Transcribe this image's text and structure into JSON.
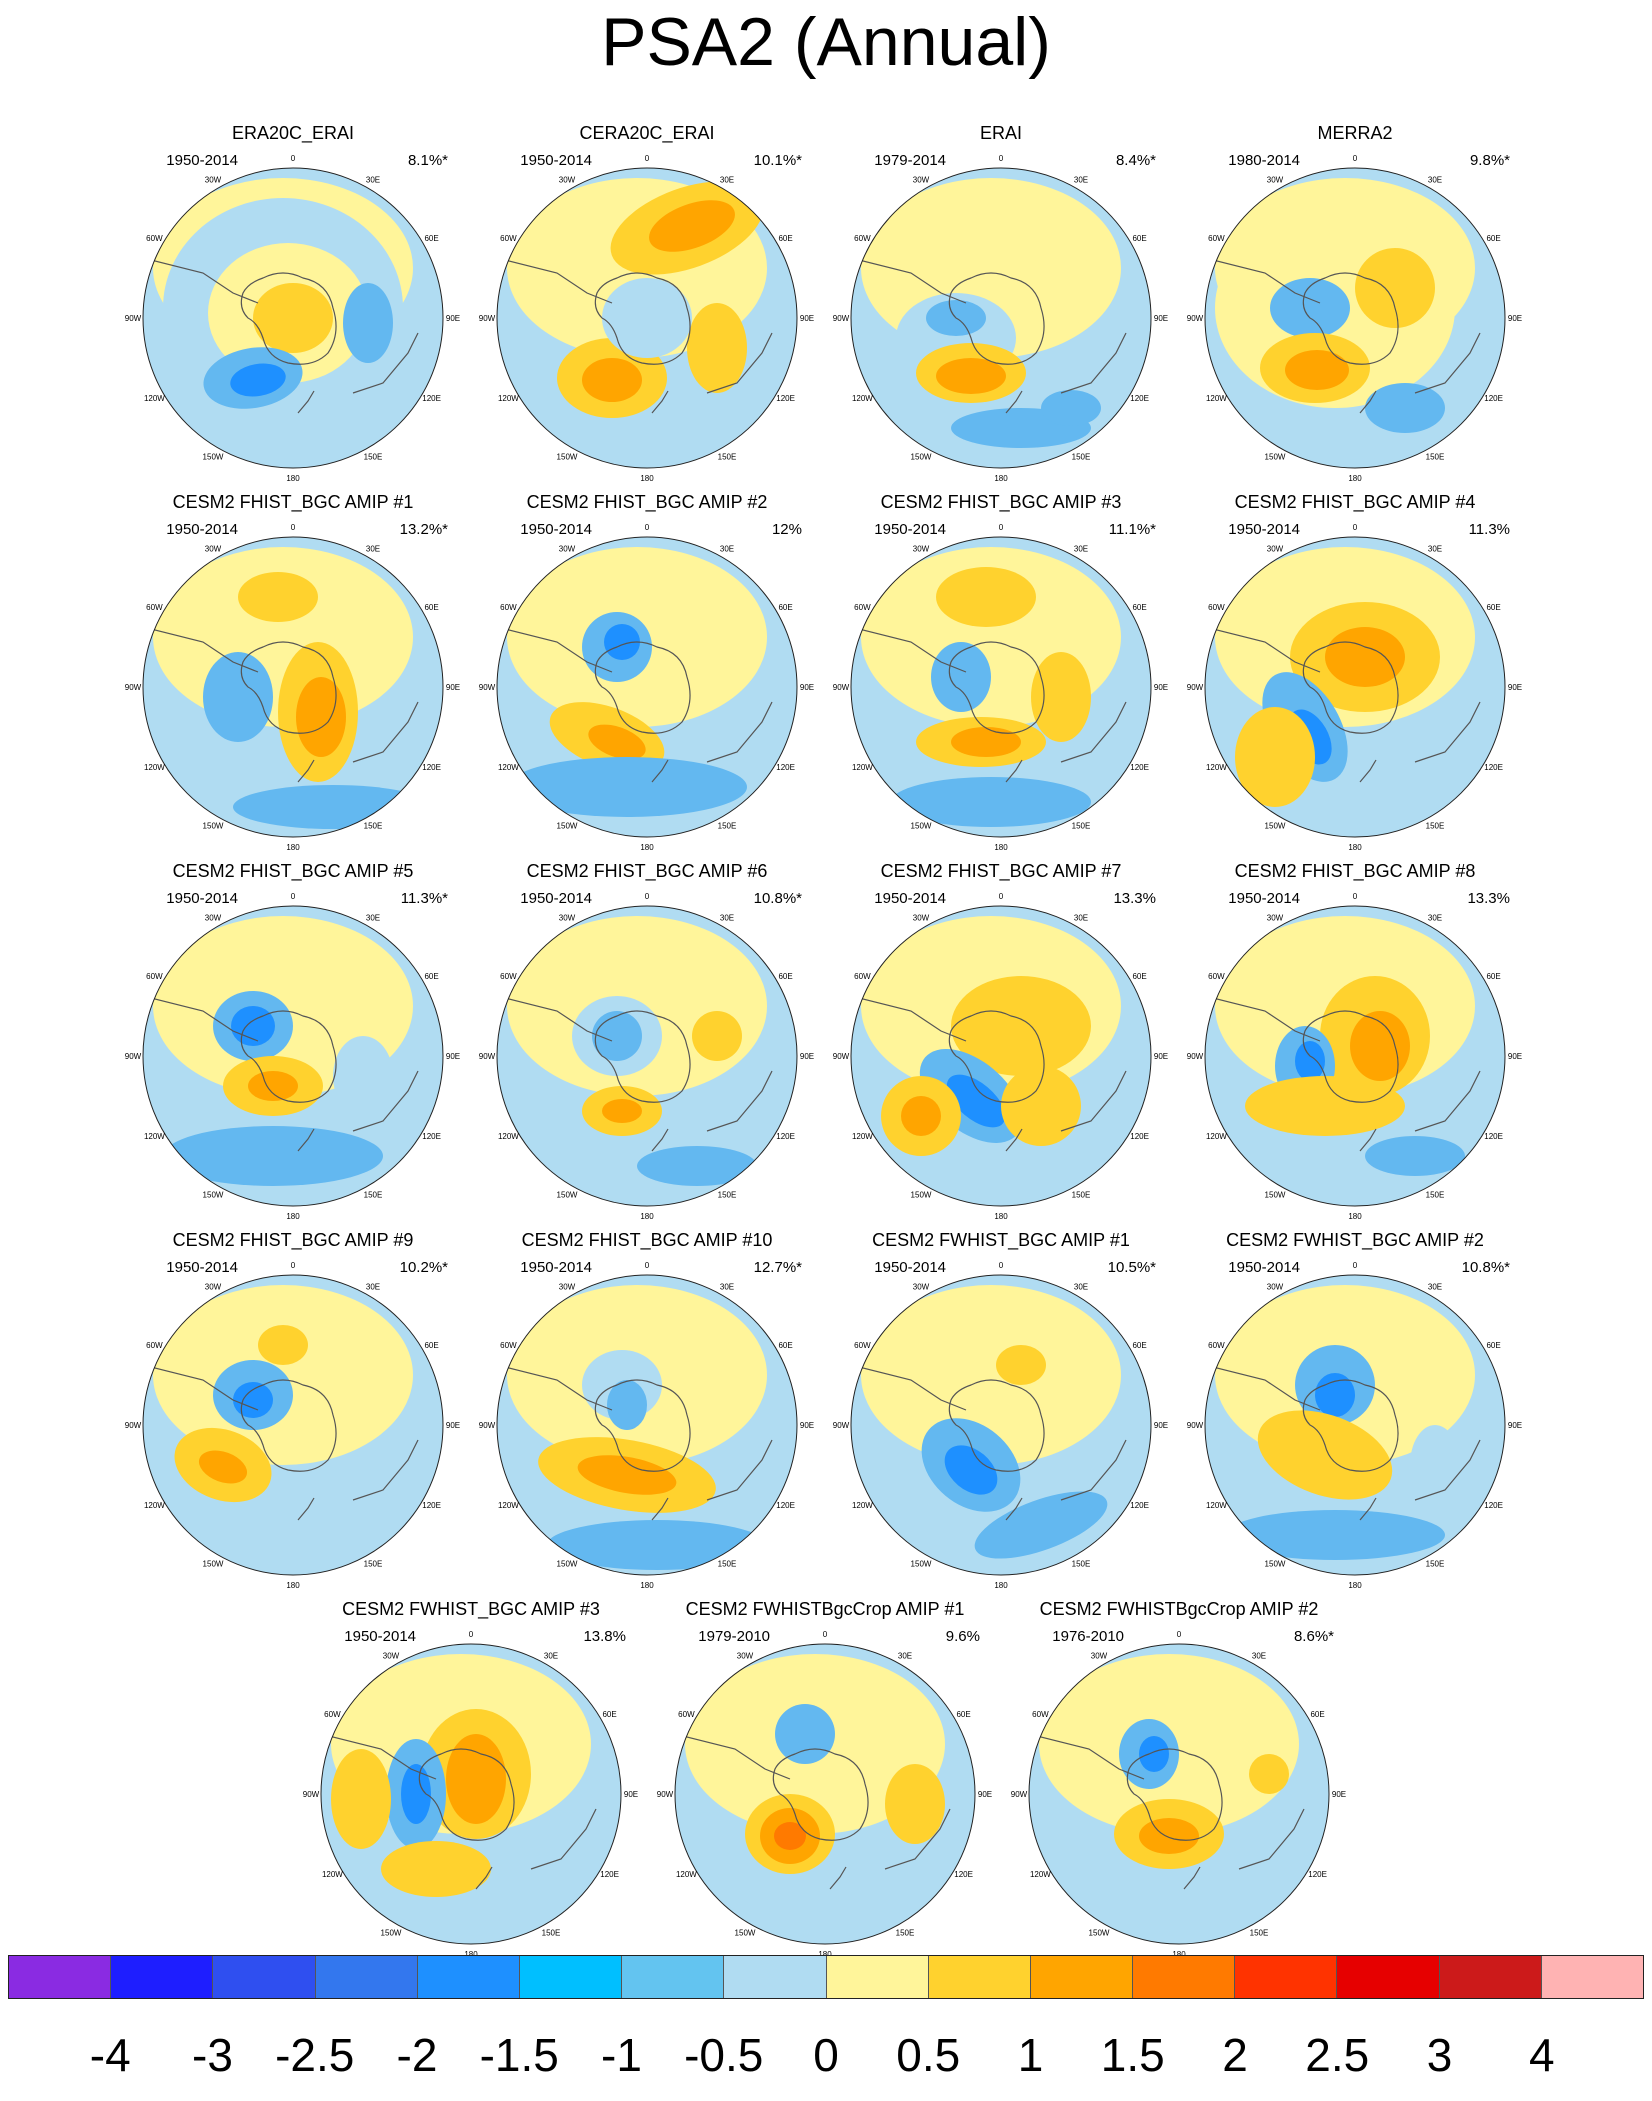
{
  "figure": {
    "title": "PSA2 (Annual)"
  },
  "map": {
    "lon_labels": [
      "0",
      "30E",
      "60E",
      "90E",
      "120E",
      "150E",
      "180",
      "150W",
      "120W",
      "90W",
      "60W",
      "30W"
    ],
    "colors": {
      "coast": "#555555",
      "outline": "#222222",
      "neg_strong": "#1e90ff",
      "neg_mid": "#63b8f0",
      "neg_weak": "#b0dcf2",
      "pos_weak": "#fff59a",
      "pos_mid": "#ffd22e",
      "pos_strong": "#ffa500",
      "pos_max": "#ff7a00"
    }
  },
  "panels": [
    {
      "title": "ERA20C_ERAI",
      "period": "1950-2014",
      "pct": "8.1%*"
    },
    {
      "title": "CERA20C_ERAI",
      "period": "1950-2014",
      "pct": "10.1%*"
    },
    {
      "title": "ERAI",
      "period": "1979-2014",
      "pct": "8.4%*"
    },
    {
      "title": "MERRA2",
      "period": "1980-2014",
      "pct": "9.8%*"
    },
    {
      "title": "CESM2 FHIST_BGC AMIP #1",
      "period": "1950-2014",
      "pct": "13.2%*"
    },
    {
      "title": "CESM2 FHIST_BGC AMIP #2",
      "period": "1950-2014",
      "pct": "12%"
    },
    {
      "title": "CESM2 FHIST_BGC AMIP #3",
      "period": "1950-2014",
      "pct": "11.1%*"
    },
    {
      "title": "CESM2 FHIST_BGC AMIP #4",
      "period": "1950-2014",
      "pct": "11.3%"
    },
    {
      "title": "CESM2 FHIST_BGC AMIP #5",
      "period": "1950-2014",
      "pct": "11.3%*"
    },
    {
      "title": "CESM2 FHIST_BGC AMIP #6",
      "period": "1950-2014",
      "pct": "10.8%*"
    },
    {
      "title": "CESM2 FHIST_BGC AMIP #7",
      "period": "1950-2014",
      "pct": "13.3%"
    },
    {
      "title": "CESM2 FHIST_BGC AMIP #8",
      "period": "1950-2014",
      "pct": "13.3%"
    },
    {
      "title": "CESM2 FHIST_BGC AMIP #9",
      "period": "1950-2014",
      "pct": "10.2%*"
    },
    {
      "title": "CESM2 FHIST_BGC AMIP #10",
      "period": "1950-2014",
      "pct": "12.7%*"
    },
    {
      "title": "CESM2 FWHIST_BGC AMIP #1",
      "period": "1950-2014",
      "pct": "10.5%*"
    },
    {
      "title": "CESM2 FWHIST_BGC AMIP #2",
      "period": "1950-2014",
      "pct": "10.8%*"
    },
    {
      "title": "CESM2 FWHIST_BGC AMIP #3",
      "period": "1950-2014",
      "pct": "13.8%"
    },
    {
      "title": "CESM2 FWHISTBgcCrop AMIP #1",
      "period": "1979-2010",
      "pct": "9.6%"
    },
    {
      "title": "CESM2 FWHISTBgcCrop AMIP #2",
      "period": "1976-2010",
      "pct": "8.6%*"
    }
  ],
  "colorbar": {
    "colors": [
      "#8a2be2",
      "#1e1eff",
      "#2f4ff0",
      "#3377ee",
      "#1e90ff",
      "#00bfff",
      "#63c4f0",
      "#b0dcf2",
      "#fff59a",
      "#ffd22e",
      "#ffa500",
      "#ff7a00",
      "#ff3300",
      "#e60000",
      "#cc1a1a",
      "#ffb3b3"
    ],
    "labels": [
      "-4",
      "-3",
      "-2.5",
      "-2",
      "-1.5",
      "-1",
      "-0.5",
      "0",
      "0.5",
      "1",
      "1.5",
      "2",
      "2.5",
      "3",
      "4"
    ]
  }
}
